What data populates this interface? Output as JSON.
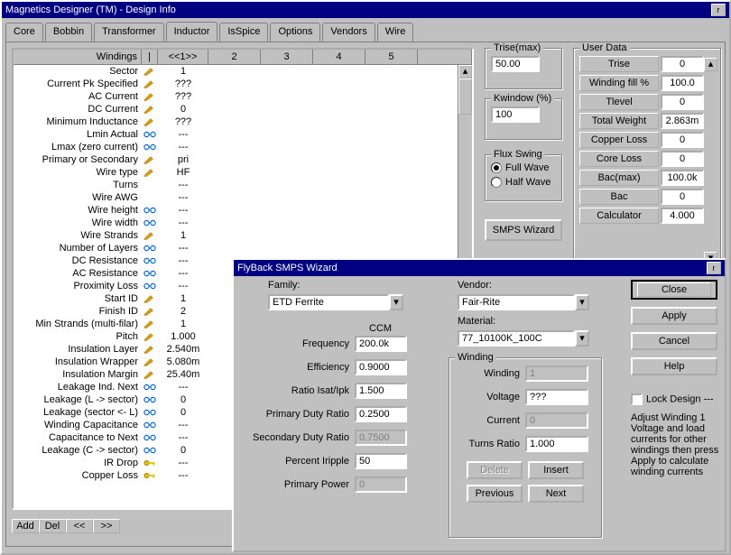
{
  "window": {
    "title": "Magnetics Designer (TM) - Design Info"
  },
  "tabs": [
    "Core",
    "Bobbin",
    "Transformer",
    "Inductor",
    "IsSpice",
    "Options",
    "Vendors",
    "Wire"
  ],
  "active_tab": 3,
  "grid": {
    "header": {
      "prop": "Windings",
      "nav": "<<1>>",
      "cols": [
        "1",
        "2",
        "3",
        "4",
        "5"
      ]
    },
    "rows": [
      {
        "prop": "Sector",
        "icon": "pencil",
        "v": "1"
      },
      {
        "prop": "Current Pk Specified",
        "icon": "pencil",
        "v": "???"
      },
      {
        "prop": "AC Current",
        "icon": "pencil",
        "v": "???"
      },
      {
        "prop": "DC Current",
        "icon": "pencil",
        "v": "0"
      },
      {
        "prop": "Minimum Inductance",
        "icon": "pencil",
        "v": "???"
      },
      {
        "prop": "Lmin Actual",
        "icon": "glasses",
        "v": "---"
      },
      {
        "prop": "Lmax (zero current)",
        "icon": "glasses",
        "v": "---"
      },
      {
        "prop": "Primary or Secondary",
        "icon": "pencil",
        "v": "pri"
      },
      {
        "prop": "Wire type",
        "icon": "pencil",
        "v": "HF"
      },
      {
        "prop": "Turns",
        "icon": "",
        "v": "---"
      },
      {
        "prop": "Wire AWG",
        "icon": "",
        "v": "---"
      },
      {
        "prop": "Wire height",
        "icon": "glasses",
        "v": "---"
      },
      {
        "prop": "Wire width",
        "icon": "glasses",
        "v": "---"
      },
      {
        "prop": "Wire Strands",
        "icon": "pencil",
        "v": "1"
      },
      {
        "prop": "Number of Layers",
        "icon": "glasses",
        "v": "---"
      },
      {
        "prop": "DC Resistance",
        "icon": "glasses",
        "v": "---"
      },
      {
        "prop": "AC Resistance",
        "icon": "glasses",
        "v": "---"
      },
      {
        "prop": "Proximity Loss",
        "icon": "glasses",
        "v": "---"
      },
      {
        "prop": "Start ID",
        "icon": "pencil",
        "v": "1"
      },
      {
        "prop": "Finish ID",
        "icon": "pencil",
        "v": "2"
      },
      {
        "prop": "Min Strands (multi-filar)",
        "icon": "pencil",
        "v": "1"
      },
      {
        "prop": "Pitch",
        "icon": "pencil",
        "v": "1.000"
      },
      {
        "prop": "Insulation  Layer",
        "icon": "pencil",
        "v": "2.540m"
      },
      {
        "prop": "Insulation Wrapper",
        "icon": "pencil",
        "v": "5.080m"
      },
      {
        "prop": "Insulation Margin",
        "icon": "pencil",
        "v": "25.40m"
      },
      {
        "prop": "Leakage Ind. Next",
        "icon": "glasses",
        "v": "---"
      },
      {
        "prop": "Leakage (L -> sector)",
        "icon": "glasses",
        "v": "0"
      },
      {
        "prop": "Leakage (sector <- L)",
        "icon": "glasses",
        "v": "0"
      },
      {
        "prop": "Winding Capacitance",
        "icon": "glasses",
        "v": "---"
      },
      {
        "prop": "Capacitance to Next",
        "icon": "glasses",
        "v": "---"
      },
      {
        "prop": "Leakage (C -> sector)",
        "icon": "glasses",
        "v": "0"
      },
      {
        "prop": "IR Drop",
        "icon": "key",
        "v": "---"
      },
      {
        "prop": "Copper Loss",
        "icon": "key",
        "v": "---"
      }
    ]
  },
  "buttons": {
    "add": "Add",
    "del": "Del",
    "prev": "<<",
    "next": ">>"
  },
  "trise": {
    "label": "Trise(max)",
    "value": "50.00"
  },
  "kwindow": {
    "label": "Kwindow (%)",
    "value": "100"
  },
  "flux": {
    "legend": "Flux Swing",
    "full": "Full Wave",
    "half": "Half Wave",
    "selected": "full"
  },
  "smps_btn": "SMPS Wizard",
  "userdata": {
    "legend": "User Data",
    "rows": [
      {
        "label": "Trise",
        "value": "0"
      },
      {
        "label": "Winding fill %",
        "value": "100.0"
      },
      {
        "label": "Tlevel",
        "value": "0"
      },
      {
        "label": "Total Weight",
        "value": "2.863m"
      },
      {
        "label": "Copper Loss",
        "value": "0"
      },
      {
        "label": "Core Loss",
        "value": "0"
      },
      {
        "label": "Bac(max)",
        "value": "100.0k"
      },
      {
        "label": "Bac",
        "value": "0"
      },
      {
        "label": "Calculator",
        "value": "4.000"
      }
    ]
  },
  "dialog": {
    "title": "FlyBack SMPS Wizard",
    "family_label": "Family:",
    "family_value": "ETD     Ferrite",
    "vendor_label": "Vendor:",
    "vendor_value": "Fair-Rite",
    "material_label": "Material:",
    "material_value": "77_10100K_100C",
    "ccm_label": "CCM",
    "fields": [
      {
        "label": "Frequency",
        "value": "200.0k",
        "ro": false
      },
      {
        "label": "Efficiency",
        "value": "0.9000",
        "ro": false
      },
      {
        "label": "Ratio Isat/Ipk",
        "value": "1.500",
        "ro": false
      },
      {
        "label": "Primary Duty Ratio",
        "value": "0.2500",
        "ro": false
      },
      {
        "label": "Secondary Duty Ratio",
        "value": "0.7500",
        "ro": true
      },
      {
        "label": "Percent Iripple",
        "value": "50",
        "ro": false
      },
      {
        "label": "Primary Power",
        "value": "0",
        "ro": true
      }
    ],
    "winding": {
      "legend": "Winding",
      "winding_label": "Winding",
      "winding_value": "1",
      "voltage_label": "Voltage",
      "voltage_value": "???",
      "current_label": "Current",
      "current_value": "0",
      "turns_label": "Turns Ratio",
      "turns_value": "1.000",
      "delete": "Delete",
      "insert": "Insert",
      "previous": "Previous",
      "next": "Next"
    },
    "right": {
      "close": "Close",
      "apply": "Apply",
      "cancel": "Cancel",
      "help": "Help",
      "lock": "Lock Design ---",
      "hint": "Adjust Winding 1 Voltage and load currents for other windings then press Apply to calculate winding currents"
    }
  },
  "icons": {
    "pencil_color": "#d8a000",
    "glasses_color": "#0066cc",
    "key_color": "#e0c000"
  }
}
